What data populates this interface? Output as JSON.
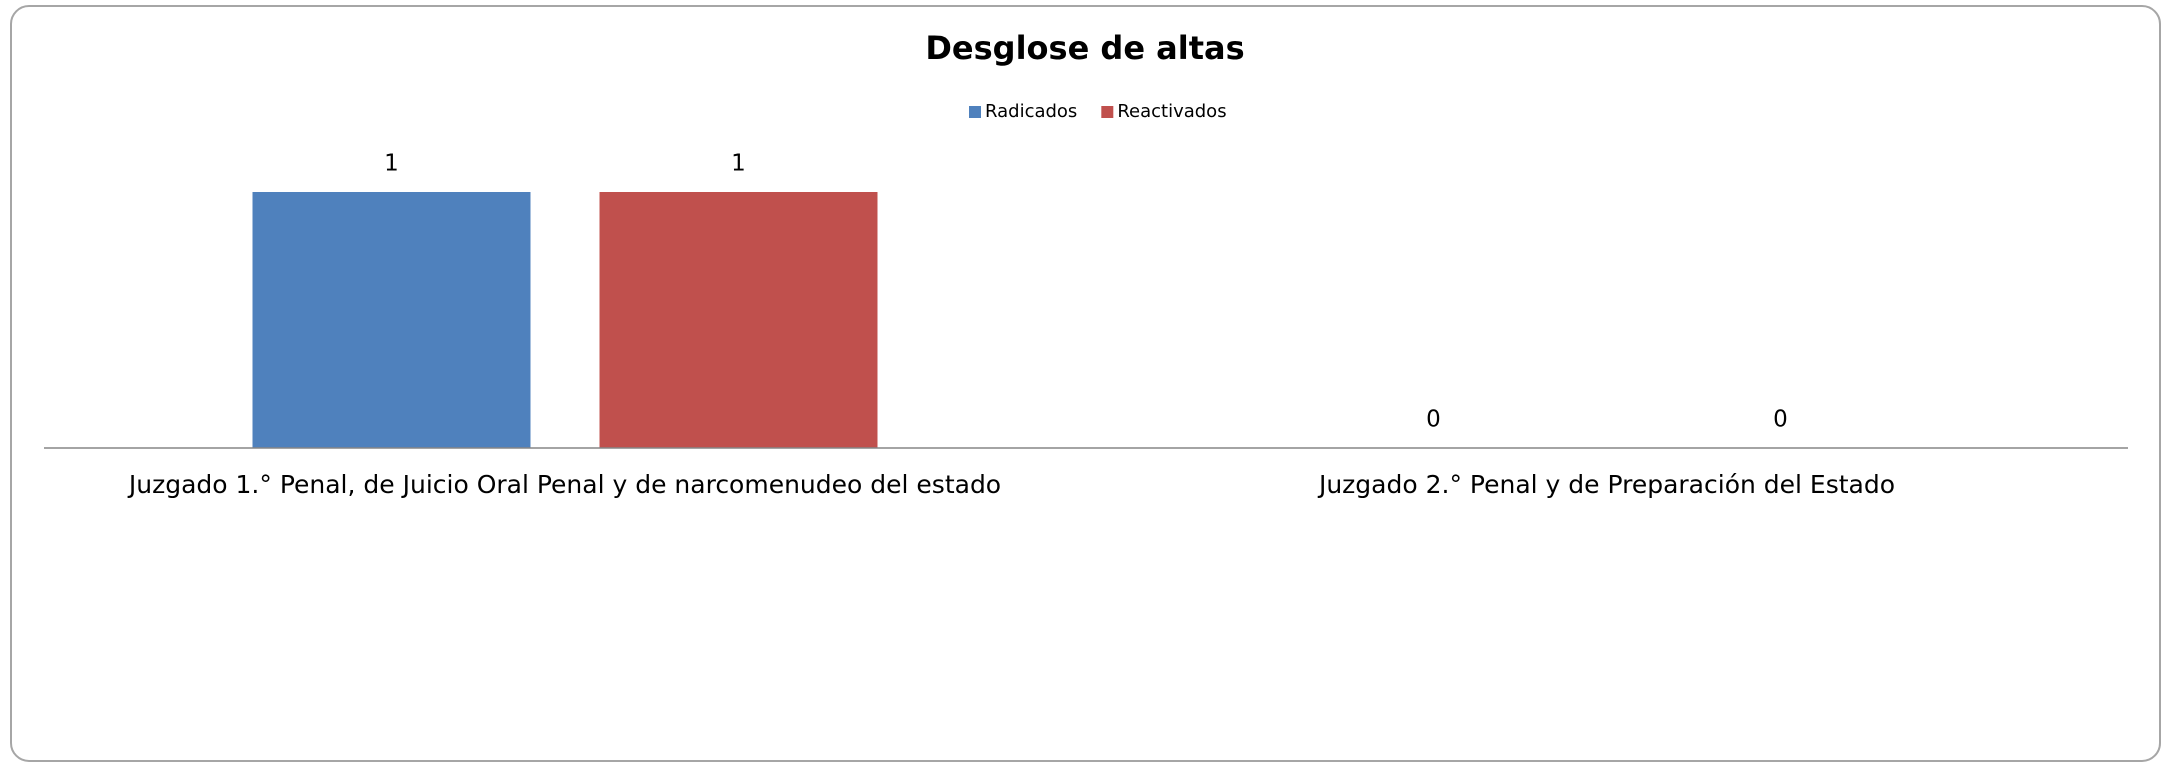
{
  "chart_data": {
    "type": "bar",
    "title": "Desglose de altas",
    "categories": [
      "Juzgado 1.° Penal, de Juicio Oral Penal y de narcomenudeo del estado",
      "Juzgado 2.° Penal y de Preparación del Estado"
    ],
    "series": [
      {
        "name": "Radicados",
        "color": "#4f81bd",
        "values": [
          1,
          0
        ]
      },
      {
        "name": "Reactivados",
        "color": "#c0504d",
        "values": [
          1,
          0
        ]
      }
    ],
    "legend": "top"
  }
}
